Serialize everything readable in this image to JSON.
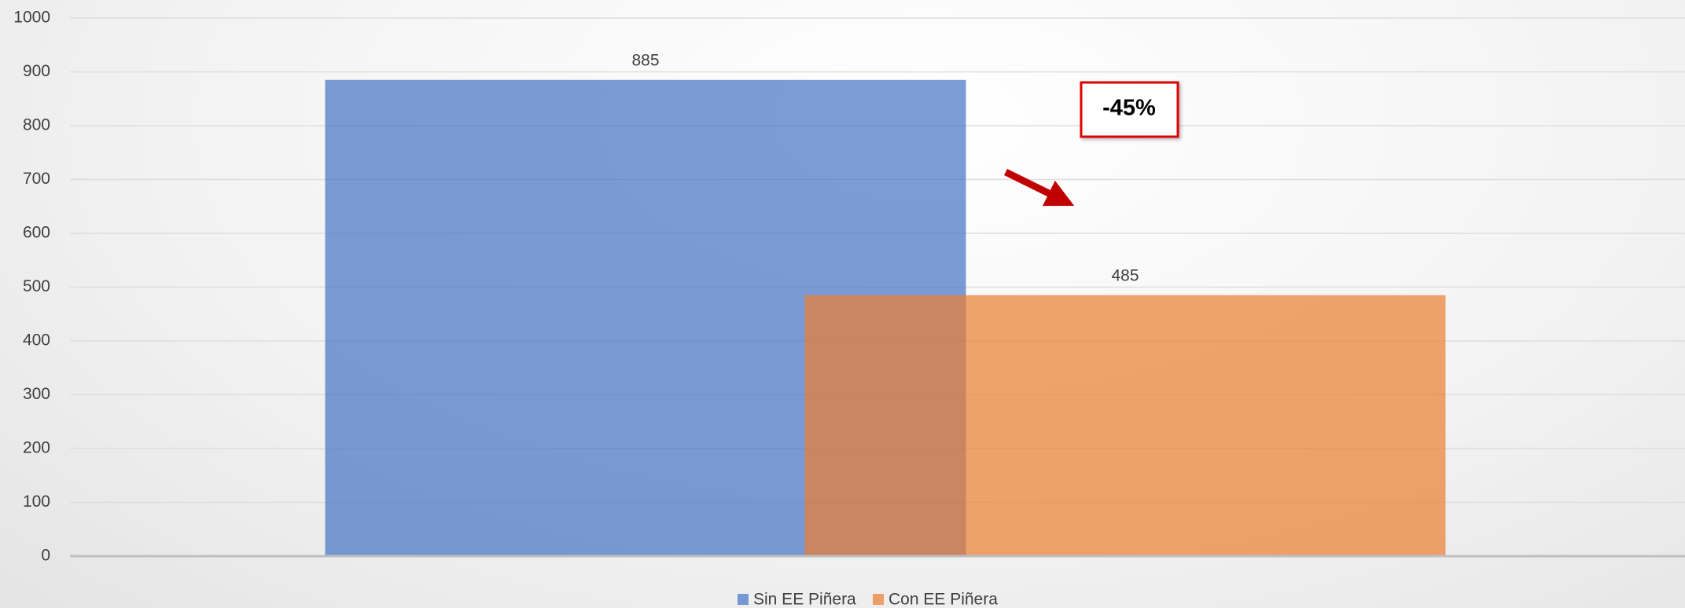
{
  "chart_data": {
    "type": "bar",
    "categories": [
      null
    ],
    "series": [
      {
        "name": "Sin EE Piñera",
        "color": "#4472c4",
        "values": [
          885
        ]
      },
      {
        "name": "Con EE Piñera",
        "color": "#ed7d31",
        "values": [
          485
        ]
      }
    ],
    "ylim": [
      0,
      1000
    ],
    "yticks": [
      0,
      100,
      200,
      300,
      400,
      500,
      600,
      700,
      800,
      900,
      1000
    ],
    "grid": true,
    "legend": "bottom",
    "annotation": "-45%"
  }
}
